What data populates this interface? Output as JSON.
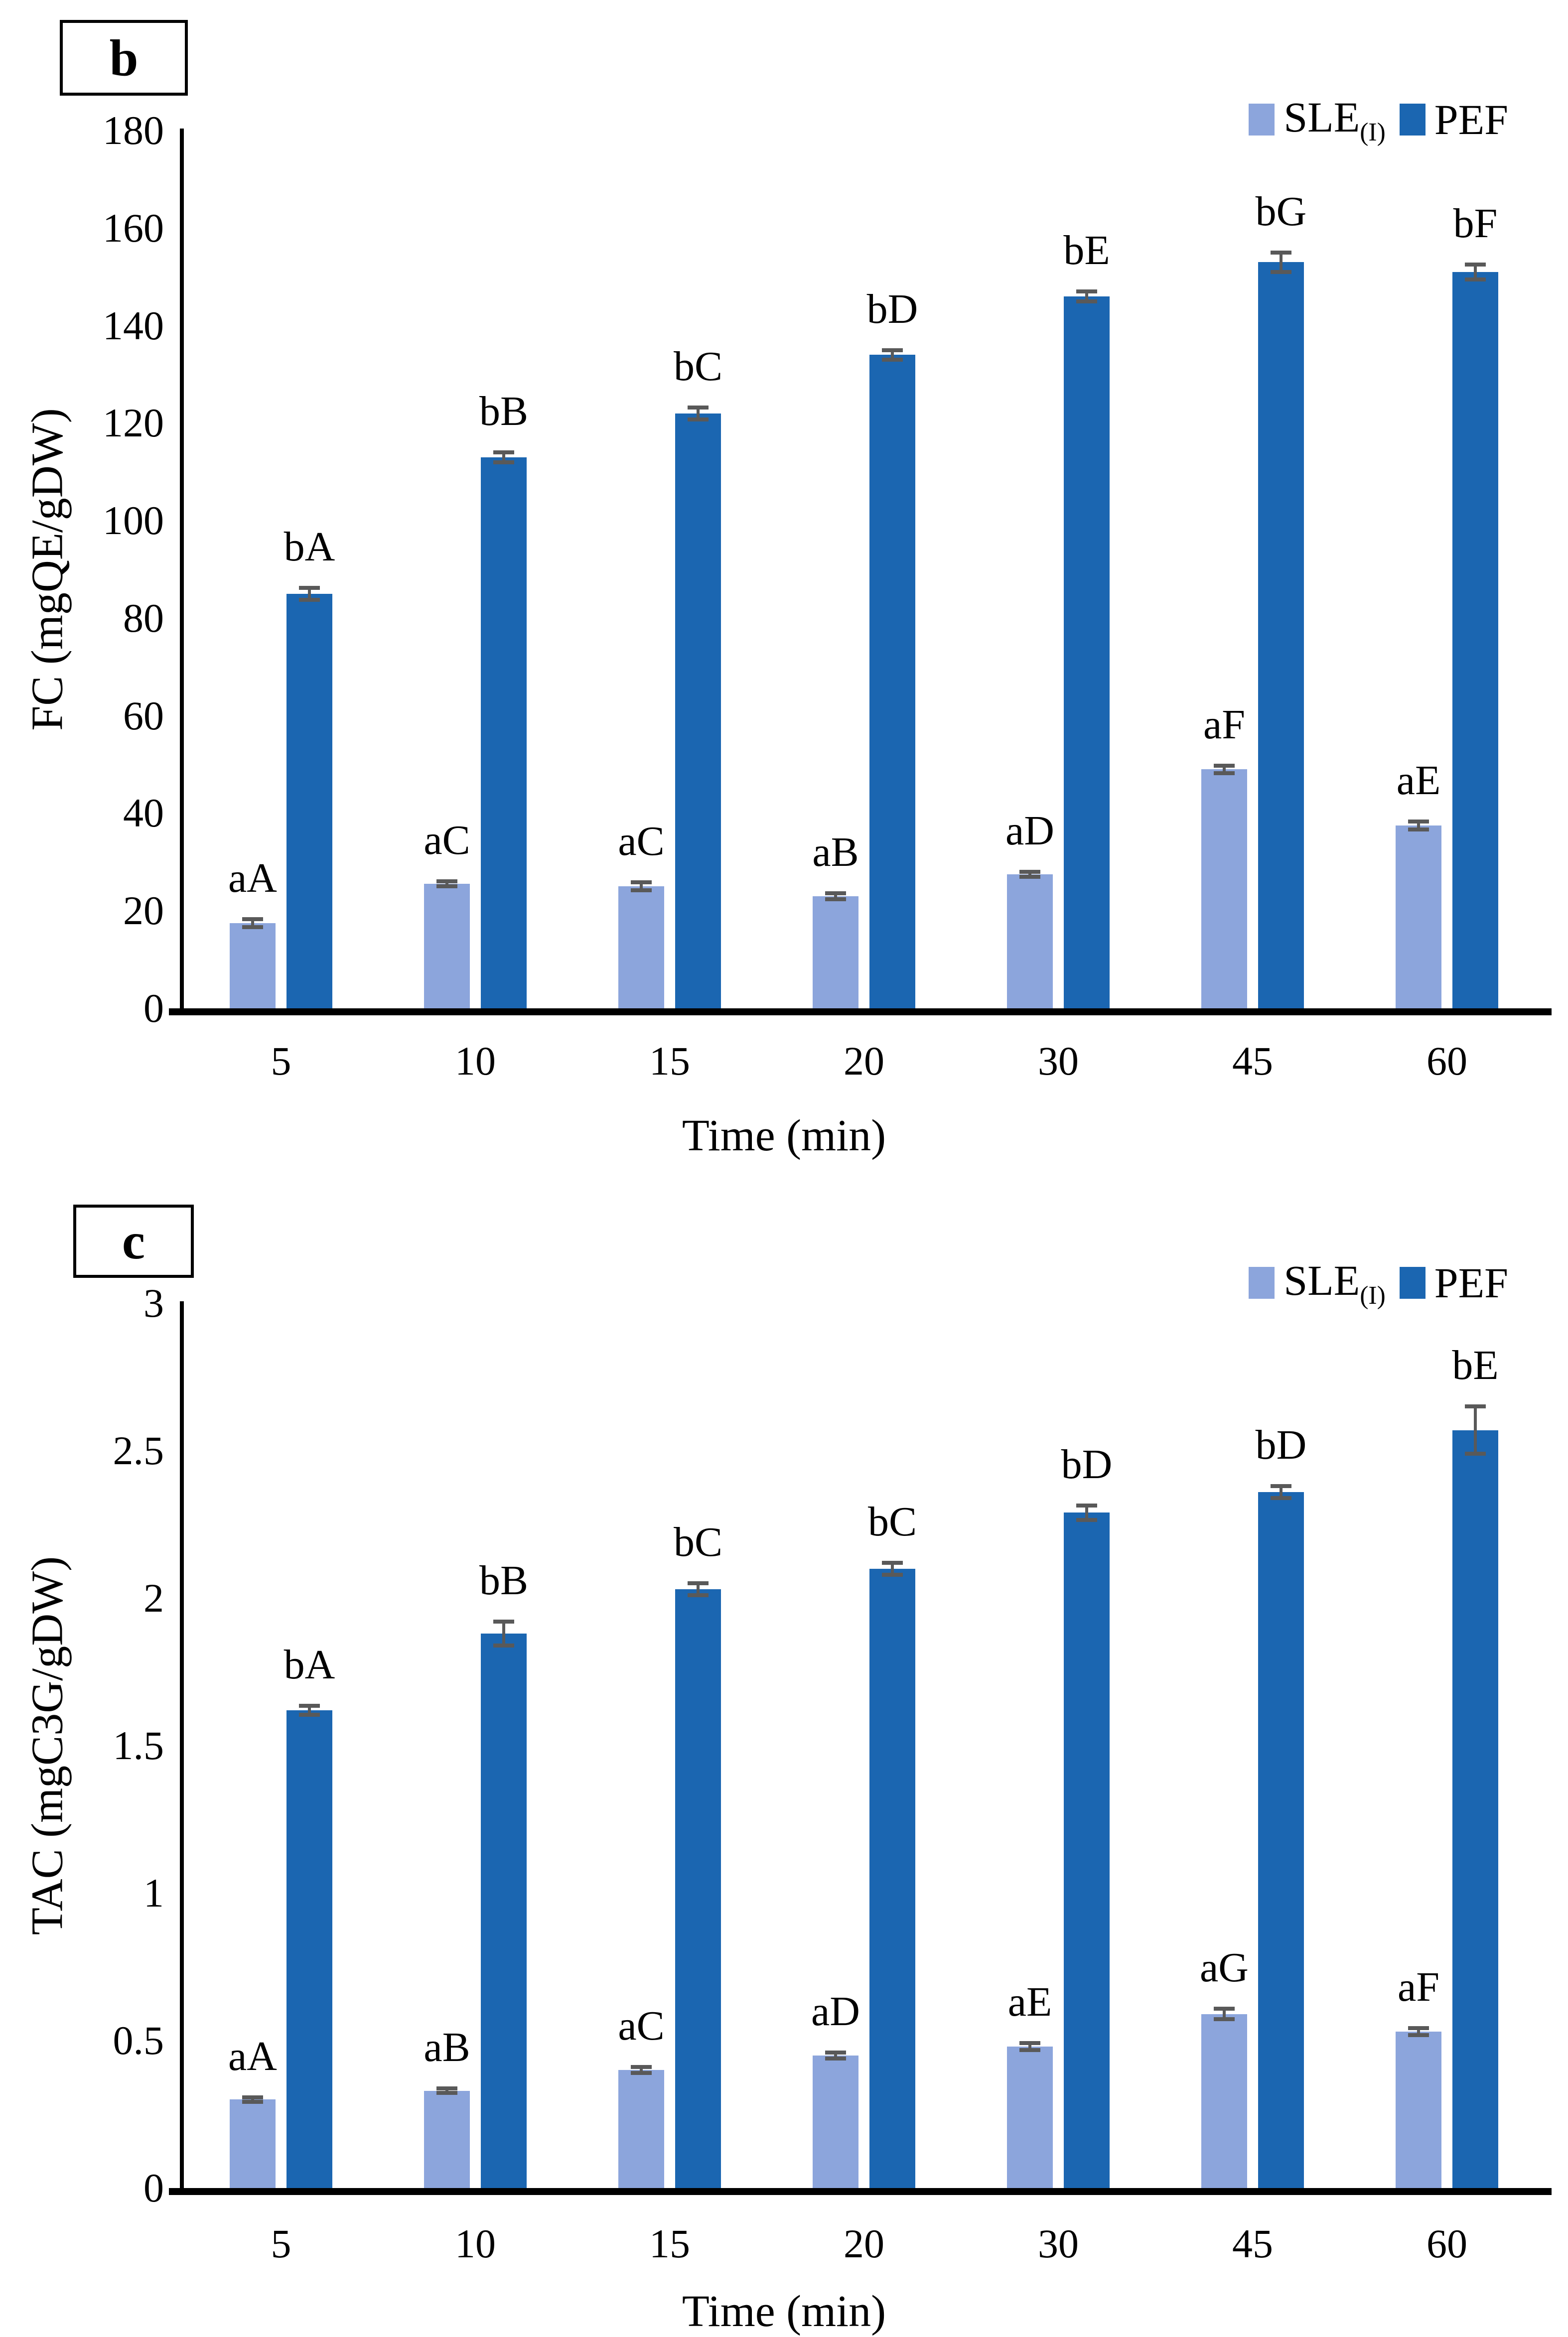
{
  "figure": {
    "panel_letters": [
      "b",
      "c"
    ]
  },
  "chart_data": [
    {
      "type": "bar",
      "panel_label": "b",
      "title": "",
      "xlabel": "Time (min)",
      "ylabel": "FC (mgQE/gDW)",
      "categories": [
        "5",
        "10",
        "15",
        "20",
        "30",
        "45",
        "60"
      ],
      "ylim": [
        0,
        180
      ],
      "yticks": [
        0,
        20,
        40,
        60,
        80,
        100,
        120,
        140,
        160,
        180
      ],
      "ytick_labels": [
        "0",
        "20",
        "40",
        "60",
        "80",
        "100",
        "120",
        "140",
        "160",
        "180"
      ],
      "grid": false,
      "legend_position": "top-right",
      "error_bar_color": "#595959",
      "series": [
        {
          "name": "SLE",
          "name_sub": "(I)",
          "color": "#8CA5DC",
          "values": [
            17.5,
            25.5,
            25,
            23,
            27.5,
            49,
            37.5
          ],
          "errors": [
            0.8,
            0.5,
            0.8,
            0.6,
            0.5,
            0.8,
            0.8
          ],
          "point_labels": [
            "aA",
            "aC",
            "aC",
            "aB",
            "aD",
            "aF",
            "aE"
          ]
        },
        {
          "name": "PEF",
          "name_sub": "",
          "color": "#1B66B1",
          "values": [
            85,
            113,
            122,
            134,
            146,
            153,
            151
          ],
          "errors": [
            1.2,
            1.0,
            1.2,
            1.0,
            1.0,
            2.0,
            1.5
          ],
          "point_labels": [
            "bA",
            "bB",
            "bC",
            "bD",
            "bE",
            "bG",
            "bF"
          ]
        }
      ]
    },
    {
      "type": "bar",
      "panel_label": "c",
      "title": "",
      "xlabel": "Time (min)",
      "ylabel": "TAC (mgC3G/gDW)",
      "categories": [
        "5",
        "10",
        "15",
        "20",
        "30",
        "45",
        "60"
      ],
      "ylim": [
        0,
        3
      ],
      "yticks": [
        0,
        0.5,
        1,
        1.5,
        2,
        2.5,
        3
      ],
      "ytick_labels": [
        "0",
        "0.5",
        "1",
        "1.5",
        "2",
        "2.5",
        "3"
      ],
      "grid": false,
      "legend_position": "top-right",
      "error_bar_color": "#595959",
      "series": [
        {
          "name": "SLE",
          "name_sub": "(I)",
          "color": "#8CA5DC",
          "values": [
            0.3,
            0.33,
            0.4,
            0.45,
            0.48,
            0.59,
            0.53
          ],
          "errors": [
            0.008,
            0.008,
            0.01,
            0.01,
            0.012,
            0.018,
            0.012
          ],
          "point_labels": [
            "aA",
            "aB",
            "aC",
            "aD",
            "aE",
            "aG",
            "aF"
          ]
        },
        {
          "name": "PEF",
          "name_sub": "",
          "color": "#1B66B1",
          "values": [
            1.62,
            1.88,
            2.03,
            2.1,
            2.29,
            2.36,
            2.57
          ],
          "errors": [
            0.015,
            0.04,
            0.02,
            0.02,
            0.025,
            0.02,
            0.08
          ],
          "point_labels": [
            "bA",
            "bB",
            "bC",
            "bC",
            "bD",
            "bD",
            "bE"
          ]
        }
      ]
    }
  ]
}
